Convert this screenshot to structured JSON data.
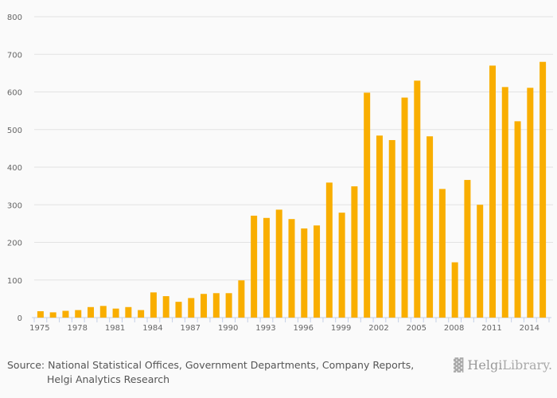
{
  "chart_data": {
    "type": "bar",
    "title": "",
    "xlabel": "",
    "ylabel": "",
    "ylim": [
      0,
      800
    ],
    "yticks": [
      0,
      100,
      200,
      300,
      400,
      500,
      600,
      700,
      800
    ],
    "grid": true,
    "bar_color": "#f9ae00",
    "categories": [
      1975,
      1976,
      1977,
      1978,
      1979,
      1980,
      1981,
      1982,
      1983,
      1984,
      1985,
      1986,
      1987,
      1988,
      1989,
      1990,
      1991,
      1992,
      1993,
      1994,
      1995,
      1996,
      1997,
      1998,
      1999,
      2000,
      2001,
      2002,
      2003,
      2004,
      2005,
      2006,
      2007,
      2008,
      2009,
      2010,
      2011,
      2012,
      2013,
      2014,
      2015
    ],
    "values": [
      17,
      14,
      18,
      20,
      28,
      31,
      24,
      28,
      20,
      67,
      57,
      42,
      52,
      63,
      65,
      65,
      99,
      271,
      265,
      287,
      262,
      237,
      245,
      359,
      279,
      349,
      598,
      484,
      472,
      585,
      630,
      482,
      342,
      147,
      366,
      300,
      670,
      613,
      522,
      611,
      680
    ],
    "xtick_labels": [
      "1975",
      "1978",
      "1981",
      "1984",
      "1987",
      "1990",
      "1993",
      "1996",
      "1999",
      "2002",
      "2005",
      "2008",
      "2011",
      "2014"
    ]
  },
  "source": {
    "line1": "Source: National Statistical Offices, Government Departments, Company Reports,",
    "line2": "Helgi Analytics Research"
  },
  "logo": {
    "brand": "Helgi",
    "suffix": "Library."
  }
}
